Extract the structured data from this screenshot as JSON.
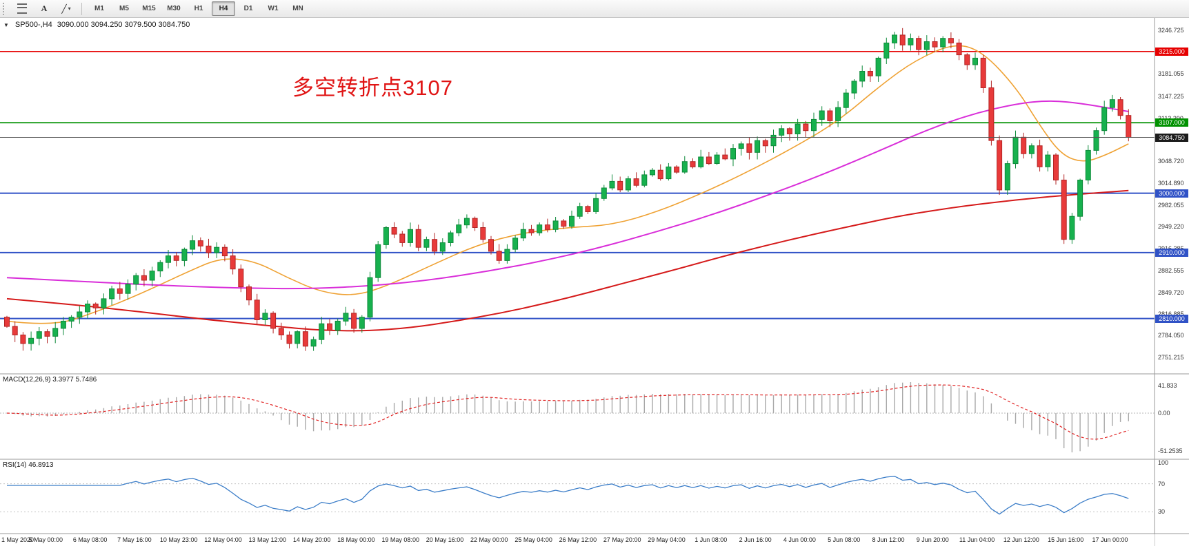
{
  "toolbar": {
    "text_tool_label": "A",
    "line_tool_label": "╱",
    "timeframes": [
      "M1",
      "M5",
      "M15",
      "M30",
      "H1",
      "H4",
      "D1",
      "W1",
      "MN"
    ],
    "selected_timeframe": "H4"
  },
  "chart": {
    "symbol_label": "SP500-,H4",
    "ohlc_text": "3090.000 3094.250 3079.500 3084.750",
    "current_price_label": "3084.750",
    "annotation_text": "多空转折点3107",
    "colors": {
      "bull": "#17B14E",
      "bull_border": "#0E8A3A",
      "bear": "#E83A3A",
      "bear_border": "#B22525",
      "ma_fast": "#EFA234",
      "ma_mid": "#D92ED9",
      "ma_slow": "#D51A1A",
      "hline_red": "#E60000",
      "hline_green": "#009100",
      "hline_blue": "#3052C6",
      "current_line": "#555555",
      "macd_hist": "#A8A8A8",
      "macd_signal": "#E02020",
      "rsi_line": "#3B7DC8",
      "annotation": "#E01414"
    }
  },
  "chart_data": {
    "type": "candlestick",
    "symbol": "SP500-",
    "timeframe": "H4",
    "price_axis_ticks": [
      3246.725,
      3181.055,
      3147.225,
      3113.39,
      3048.72,
      3014.89,
      2982.055,
      2949.22,
      2916.385,
      2882.555,
      2849.72,
      2816.885,
      2784.05,
      2751.215
    ],
    "hlines": [
      {
        "price": 3215.0,
        "label": "3215.000",
        "type": "resistance",
        "color_key": "hline_red"
      },
      {
        "price": 3107.0,
        "label": "3107.000",
        "type": "pivot",
        "color_key": "hline_green"
      },
      {
        "price": 3000.0,
        "label": "3000.000",
        "type": "support",
        "color_key": "hline_blue"
      },
      {
        "price": 2910.0,
        "label": "2910.000",
        "type": "support",
        "color_key": "hline_blue"
      },
      {
        "price": 2810.0,
        "label": "2810.000",
        "type": "support",
        "color_key": "hline_blue"
      }
    ],
    "current_price": 3084.75,
    "price_range": {
      "max": 3266,
      "min": 2726
    },
    "first_open": 2812,
    "closes": [
      2798,
      2785,
      2772,
      2780,
      2790,
      2783,
      2795,
      2806,
      2812,
      2820,
      2832,
      2826,
      2840,
      2855,
      2848,
      2862,
      2875,
      2868,
      2882,
      2895,
      2905,
      2898,
      2915,
      2928,
      2920,
      2910,
      2918,
      2905,
      2885,
      2858,
      2838,
      2808,
      2818,
      2795,
      2785,
      2772,
      2790,
      2768,
      2778,
      2802,
      2792,
      2806,
      2818,
      2795,
      2812,
      2872,
      2922,
      2948,
      2938,
      2925,
      2945,
      2918,
      2930,
      2912,
      2925,
      2940,
      2952,
      2962,
      2948,
      2930,
      2912,
      2898,
      2915,
      2932,
      2945,
      2940,
      2952,
      2945,
      2958,
      2950,
      2965,
      2980,
      2972,
      2992,
      3008,
      3018,
      3005,
      3022,
      3012,
      3028,
      3035,
      3022,
      3040,
      3032,
      3048,
      3040,
      3055,
      3045,
      3058,
      3052,
      3068,
      3075,
      3062,
      3080,
      3072,
      3088,
      3098,
      3090,
      3105,
      3095,
      3112,
      3125,
      3110,
      3130,
      3152,
      3170,
      3185,
      3178,
      3205,
      3228,
      3240,
      3225,
      3235,
      3218,
      3230,
      3222,
      3235,
      3228,
      3210,
      3195,
      3205,
      3160,
      3080,
      3005,
      3045,
      3085,
      3060,
      3072,
      3040,
      3058,
      3020,
      2930,
      2965,
      3020,
      3065,
      3095,
      3130,
      3142,
      3118,
      3084.75
    ],
    "moving_averages": [
      {
        "name": "ma-fast-orange",
        "color_key": "ma_fast",
        "width": 1.6,
        "points": [
          [
            0,
            2806
          ],
          [
            0.04,
            2798
          ],
          [
            0.08,
            2820
          ],
          [
            0.12,
            2848
          ],
          [
            0.16,
            2880
          ],
          [
            0.19,
            2902
          ],
          [
            0.22,
            2898
          ],
          [
            0.25,
            2872
          ],
          [
            0.28,
            2850
          ],
          [
            0.31,
            2844
          ],
          [
            0.34,
            2860
          ],
          [
            0.38,
            2892
          ],
          [
            0.42,
            2922
          ],
          [
            0.46,
            2940
          ],
          [
            0.5,
            2948
          ],
          [
            0.54,
            2952
          ],
          [
            0.58,
            2972
          ],
          [
            0.62,
            3000
          ],
          [
            0.66,
            3032
          ],
          [
            0.7,
            3068
          ],
          [
            0.74,
            3108
          ],
          [
            0.78,
            3165
          ],
          [
            0.81,
            3202
          ],
          [
            0.845,
            3228
          ],
          [
            0.87,
            3215
          ],
          [
            0.9,
            3160
          ],
          [
            0.92,
            3105
          ],
          [
            0.94,
            3058
          ],
          [
            0.96,
            3046
          ],
          [
            0.98,
            3058
          ],
          [
            1,
            3075
          ]
        ]
      },
      {
        "name": "ma-mid-magenta",
        "color_key": "ma_mid",
        "width": 2,
        "points": [
          [
            0,
            2872
          ],
          [
            0.07,
            2866
          ],
          [
            0.14,
            2860
          ],
          [
            0.21,
            2856
          ],
          [
            0.27,
            2855
          ],
          [
            0.33,
            2860
          ],
          [
            0.38,
            2869
          ],
          [
            0.43,
            2882
          ],
          [
            0.48,
            2898
          ],
          [
            0.53,
            2918
          ],
          [
            0.58,
            2942
          ],
          [
            0.63,
            2968
          ],
          [
            0.68,
            2998
          ],
          [
            0.73,
            3030
          ],
          [
            0.78,
            3066
          ],
          [
            0.82,
            3096
          ],
          [
            0.86,
            3120
          ],
          [
            0.9,
            3136
          ],
          [
            0.93,
            3141
          ],
          [
            0.96,
            3136
          ],
          [
            1,
            3124
          ]
        ]
      },
      {
        "name": "ma-slow-red",
        "color_key": "ma_slow",
        "width": 2,
        "points": [
          [
            0,
            2840
          ],
          [
            0.06,
            2831
          ],
          [
            0.12,
            2820
          ],
          [
            0.18,
            2808
          ],
          [
            0.24,
            2798
          ],
          [
            0.28,
            2792
          ],
          [
            0.32,
            2791
          ],
          [
            0.36,
            2796
          ],
          [
            0.4,
            2806
          ],
          [
            0.44,
            2818
          ],
          [
            0.48,
            2833
          ],
          [
            0.52,
            2850
          ],
          [
            0.56,
            2868
          ],
          [
            0.6,
            2886
          ],
          [
            0.64,
            2905
          ],
          [
            0.68,
            2922
          ],
          [
            0.72,
            2938
          ],
          [
            0.76,
            2953
          ],
          [
            0.8,
            2967
          ],
          [
            0.85,
            2980
          ],
          [
            0.9,
            2990
          ],
          [
            0.95,
            2998
          ],
          [
            1,
            3004
          ]
        ]
      }
    ],
    "macd": {
      "header": "MACD(12,26,9) 3.3977 5.7486",
      "fast": 12,
      "slow": 26,
      "signal": 9,
      "axis_labels": [
        "41.833",
        "0.00",
        "-51.2535"
      ]
    },
    "rsi": {
      "header": "RSI(14) 46.8913",
      "period": 14,
      "axis_labels": [
        "100",
        "70",
        "30"
      ],
      "levels": [
        70,
        30
      ]
    },
    "time_labels": [
      "1 May 2020",
      "5 May 00:00",
      "6 May 08:00",
      "7 May 16:00",
      "10 May 23:00",
      "12 May 04:00",
      "13 May 12:00",
      "14 May 20:00",
      "18 May 00:00",
      "19 May 08:00",
      "20 May 16:00",
      "22 May 00:00",
      "25 May 04:00",
      "26 May 12:00",
      "27 May 20:00",
      "29 May 04:00",
      "1 Jun 08:00",
      "2 Jun 16:00",
      "4 Jun 00:00",
      "5 Jun 08:00",
      "8 Jun 12:00",
      "9 Jun 20:00",
      "11 Jun 04:00",
      "12 Jun 12:00",
      "15 Jun 16:00",
      "17 Jun 00:00"
    ]
  }
}
